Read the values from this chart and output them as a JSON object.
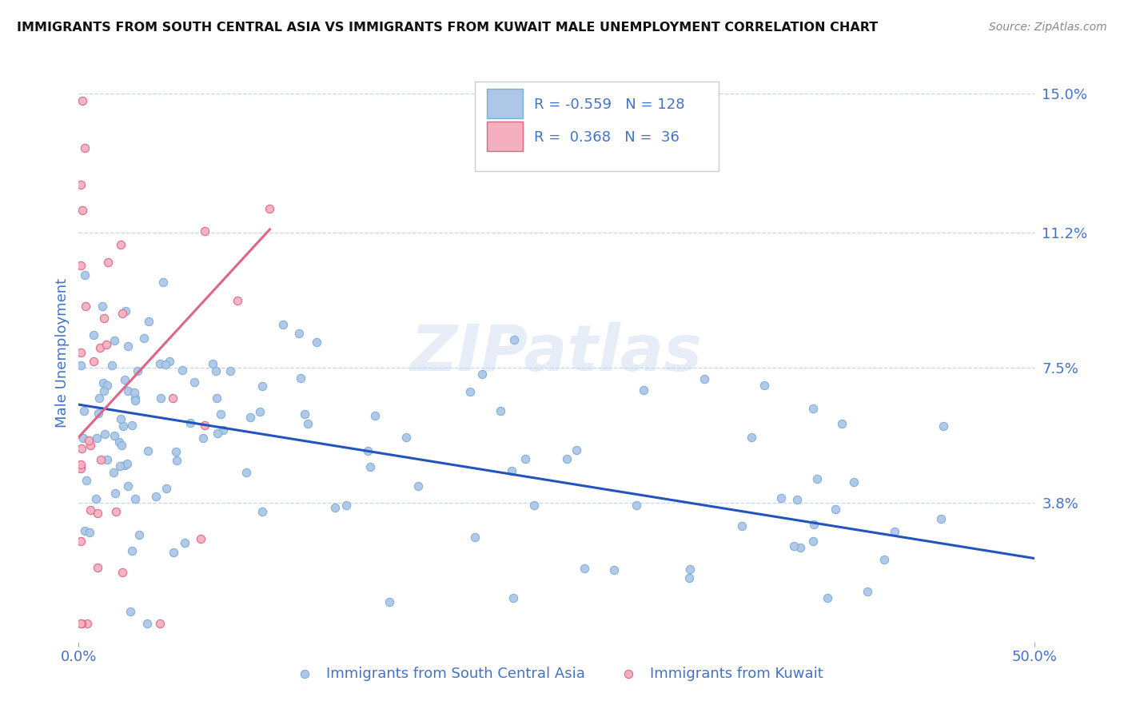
{
  "title": "IMMIGRANTS FROM SOUTH CENTRAL ASIA VS IMMIGRANTS FROM KUWAIT MALE UNEMPLOYMENT CORRELATION CHART",
  "source": "Source: ZipAtlas.com",
  "ylabel": "Male Unemployment",
  "xlabel": "",
  "xlim": [
    0.0,
    0.5
  ],
  "ylim": [
    0.0,
    0.158
  ],
  "xtick_labels": [
    "0.0%",
    "50.0%"
  ],
  "ytick_positions": [
    0.038,
    0.075,
    0.112,
    0.15
  ],
  "ytick_labels": [
    "3.8%",
    "7.5%",
    "11.2%",
    "15.0%"
  ],
  "series1": {
    "label": "Immigrants from South Central Asia",
    "color": "#aec6e8",
    "edge_color": "#7bafd4",
    "R": -0.559,
    "N": 128,
    "trend_color": "#2255bb"
  },
  "series2": {
    "label": "Immigrants from Kuwait",
    "color": "#f4b0be",
    "edge_color": "#dd6688",
    "R": 0.368,
    "N": 36,
    "trend_color": "#dd6688"
  },
  "watermark": "ZIPatlas",
  "background_color": "#ffffff",
  "grid_color": "#c8d4e8",
  "title_color": "#111111",
  "axis_label_color": "#4472c4",
  "right_tick_color": "#4472c4"
}
